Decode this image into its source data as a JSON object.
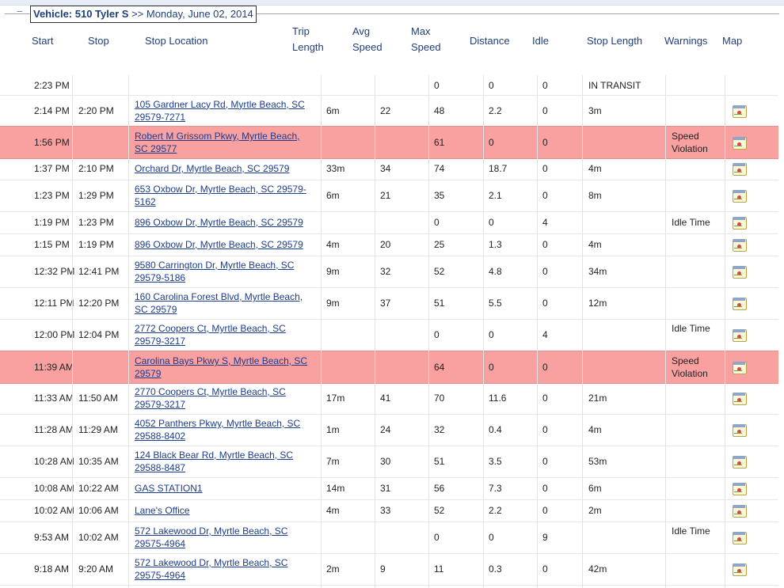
{
  "header": {
    "vehicle_label": "Vehicle: 510 Tyler S",
    "date_label": ">> Monday, June 02, 2014"
  },
  "columns": {
    "start": "Start",
    "stop": "Stop",
    "stop_location": "Stop Location",
    "trip_length_1": "Trip",
    "trip_length_2": "Length",
    "avg_speed_1": "Avg",
    "avg_speed_2": "Speed",
    "max_speed_1": "Max",
    "max_speed_2": "Speed",
    "distance": "Distance",
    "idle": "Idle",
    "stop_length": "Stop Length",
    "warnings": "Warnings",
    "map": "Map"
  },
  "rows": [
    {
      "start": "2:23 PM",
      "stop": "",
      "location": "",
      "trip": "",
      "avg": "",
      "max": "0",
      "distance": "0",
      "idle": "0",
      "stop_length": "IN TRANSIT",
      "warning": "",
      "map": false,
      "alert": false
    },
    {
      "start": "2:14 PM",
      "stop": "2:20 PM",
      "location": "105 Gardner Lacy Rd, Myrtle Beach, SC 29579-7271",
      "trip": "6m",
      "avg": "22",
      "max": "48",
      "distance": "2.2",
      "idle": "0",
      "stop_length": "3m",
      "warning": "",
      "map": true,
      "alert": false
    },
    {
      "start": "1:56 PM",
      "stop": "",
      "location": "Robert M Grissom Pkwy, Myrtle Beach, SC 29577",
      "trip": "",
      "avg": "",
      "max": "61",
      "distance": "0",
      "idle": "0",
      "stop_length": "",
      "warning": "Speed Violation",
      "map": true,
      "alert": true
    },
    {
      "start": "1:37 PM",
      "stop": "2:10 PM",
      "location": "Orchard Dr, Myrtle Beach, SC 29579",
      "trip": "33m",
      "avg": "34",
      "max": "74",
      "distance": "18.7",
      "idle": "0",
      "stop_length": "4m",
      "warning": "",
      "map": true,
      "alert": false
    },
    {
      "start": "1:23 PM",
      "stop": "1:29 PM",
      "location": "653 Oxbow Dr, Myrtle Beach, SC 29579-5162",
      "trip": "6m",
      "avg": "21",
      "max": "35",
      "distance": "2.1",
      "idle": "0",
      "stop_length": "8m",
      "warning": "",
      "map": true,
      "alert": false
    },
    {
      "start": "1:19 PM",
      "stop": "1:23 PM",
      "location": "896 Oxbow Dr, Myrtle Beach, SC 29579",
      "trip": "",
      "avg": "",
      "max": "0",
      "distance": "0",
      "idle": "4",
      "stop_length": "",
      "warning": "Idle Time",
      "map": true,
      "alert": false
    },
    {
      "start": "1:15 PM",
      "stop": "1:19 PM",
      "location": "896 Oxbow Dr, Myrtle Beach, SC 29579",
      "trip": "4m",
      "avg": "20",
      "max": "25",
      "distance": "1.3",
      "idle": "0",
      "stop_length": "4m",
      "warning": "",
      "map": true,
      "alert": false
    },
    {
      "start": "12:32 PM",
      "stop": "12:41 PM",
      "location": "9580 Carrington Dr, Myrtle Beach, SC 29579-5186",
      "trip": "9m",
      "avg": "32",
      "max": "52",
      "distance": "4.8",
      "idle": "0",
      "stop_length": "34m",
      "warning": "",
      "map": true,
      "alert": false
    },
    {
      "start": "12:11 PM",
      "stop": "12:20 PM",
      "location": "160 Carolina Forest Blvd, Myrtle Beach, SC 29579",
      "trip": "9m",
      "avg": "37",
      "max": "51",
      "distance": "5.5",
      "idle": "0",
      "stop_length": "12m",
      "warning": "",
      "map": true,
      "alert": false
    },
    {
      "start": "12:00 PM",
      "stop": "12:04 PM",
      "location": "2772 Coopers Ct, Myrtle Beach, SC 29579-3217",
      "trip": "",
      "avg": "",
      "max": "0",
      "distance": "0",
      "idle": "4",
      "stop_length": "",
      "warning": "Idle Time",
      "map": true,
      "alert": false
    },
    {
      "start": "11:39 AM",
      "stop": "",
      "location": "Carolina Bays Pkwy S, Myrtle Beach, SC 29579",
      "trip": "",
      "avg": "",
      "max": "64",
      "distance": "0",
      "idle": "0",
      "stop_length": "",
      "warning": "Speed Violation",
      "map": true,
      "alert": true
    },
    {
      "start": "11:33 AM",
      "stop": "11:50 AM",
      "location": "2770 Coopers Ct, Myrtle Beach, SC 29579-3217",
      "trip": "17m",
      "avg": "41",
      "max": "70",
      "distance": "11.6",
      "idle": "0",
      "stop_length": "21m",
      "warning": "",
      "map": true,
      "alert": false
    },
    {
      "start": "11:28 AM",
      "stop": "11:29 AM",
      "location": "4052 Panthers Pkwy, Myrtle Beach, SC 29588-8402",
      "trip": "1m",
      "avg": "24",
      "max": "32",
      "distance": "0.4",
      "idle": "0",
      "stop_length": "4m",
      "warning": "",
      "map": true,
      "alert": false
    },
    {
      "start": "10:28 AM",
      "stop": "10:35 AM",
      "location": "124 Black Bear Rd, Myrtle Beach, SC 29588-8487",
      "trip": "7m",
      "avg": "30",
      "max": "51",
      "distance": "3.5",
      "idle": "0",
      "stop_length": "53m",
      "warning": "",
      "map": true,
      "alert": false
    },
    {
      "start": "10:08 AM",
      "stop": "10:22 AM",
      "location": "GAS STATION1",
      "trip": "14m",
      "avg": "31",
      "max": "56",
      "distance": "7.3",
      "idle": "0",
      "stop_length": "6m",
      "warning": "",
      "map": true,
      "alert": false
    },
    {
      "start": "10:02 AM",
      "stop": "10:06 AM",
      "location": "Lane's Office",
      "trip": "4m",
      "avg": "33",
      "max": "52",
      "distance": "2.2",
      "idle": "0",
      "stop_length": "2m",
      "warning": "",
      "map": true,
      "alert": false
    },
    {
      "start": "9:53 AM",
      "stop": "10:02 AM",
      "location": "572 Lakewood Dr, Myrtle Beach, SC 29575-4964",
      "trip": "",
      "avg": "",
      "max": "0",
      "distance": "0",
      "idle": "9",
      "stop_length": "",
      "warning": "Idle Time",
      "map": true,
      "alert": false
    },
    {
      "start": "9:18 AM",
      "stop": "9:20 AM",
      "location": "572 Lakewood Dr, Myrtle Beach, SC 29575-4964",
      "trip": "2m",
      "avg": "9",
      "max": "11",
      "distance": "0.3",
      "idle": "0",
      "stop_length": "42m",
      "warning": "",
      "map": true,
      "alert": false
    }
  ]
}
